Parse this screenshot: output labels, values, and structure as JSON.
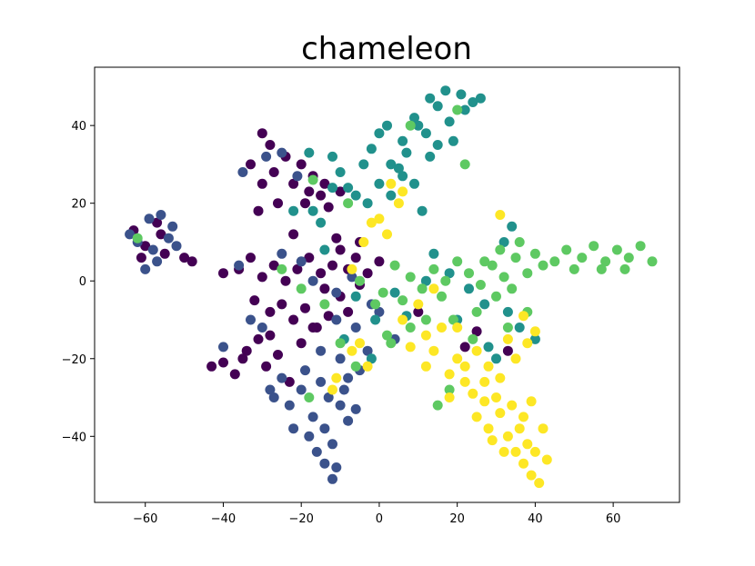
{
  "chart_data": {
    "type": "scatter",
    "title": "chameleon",
    "xlabel": "",
    "ylabel": "",
    "xlim": [
      -73,
      77
    ],
    "ylim": [
      -57,
      55
    ],
    "xticks": [
      -60,
      -40,
      -20,
      0,
      20,
      40,
      60
    ],
    "yticks": [
      -40,
      -20,
      0,
      20,
      40
    ],
    "xtick_labels": [
      "−60",
      "−40",
      "−20",
      "0",
      "20",
      "40",
      "60"
    ],
    "ytick_labels": [
      "−40",
      "−20",
      "0",
      "20",
      "40"
    ],
    "grid": false,
    "legend": "none",
    "marker": "circle",
    "colormap": "viridis",
    "series": [
      {
        "color": "#440154",
        "points": [
          [
            -63,
            13
          ],
          [
            -60,
            9
          ],
          [
            -57,
            15
          ],
          [
            -55,
            7
          ],
          [
            -61,
            6
          ],
          [
            -56,
            12
          ],
          [
            -50,
            6
          ],
          [
            -48,
            5
          ],
          [
            -30,
            38
          ],
          [
            -28,
            35
          ],
          [
            -33,
            30
          ],
          [
            -27,
            28
          ],
          [
            -24,
            32
          ],
          [
            -20,
            30
          ],
          [
            -22,
            25
          ],
          [
            -17,
            27
          ],
          [
            -30,
            25
          ],
          [
            -26,
            20
          ],
          [
            -31,
            18
          ],
          [
            -19,
            20
          ],
          [
            -15,
            22
          ],
          [
            -13,
            19
          ],
          [
            -10,
            23
          ],
          [
            -14,
            25
          ],
          [
            -18,
            23
          ],
          [
            -40,
            2
          ],
          [
            -36,
            3
          ],
          [
            -33,
            6
          ],
          [
            -30,
            1
          ],
          [
            -27,
            4
          ],
          [
            -24,
            0
          ],
          [
            -21,
            3
          ],
          [
            -18,
            6
          ],
          [
            -15,
            2
          ],
          [
            -12,
            4
          ],
          [
            -10,
            8
          ],
          [
            -8,
            3
          ],
          [
            -5,
            -1
          ],
          [
            -32,
            -5
          ],
          [
            -28,
            -8
          ],
          [
            -25,
            -6
          ],
          [
            -22,
            -10
          ],
          [
            -19,
            -7
          ],
          [
            -16,
            -12
          ],
          [
            -13,
            -9
          ],
          [
            -10,
            -4
          ],
          [
            -8,
            -8
          ],
          [
            -40,
            -21
          ],
          [
            -37,
            -24
          ],
          [
            -34,
            -18
          ],
          [
            -31,
            -15
          ],
          [
            -29,
            -22
          ],
          [
            -26,
            -19
          ],
          [
            -23,
            -26
          ],
          [
            -20,
            -16
          ],
          [
            -17,
            -12
          ],
          [
            -43,
            -22
          ],
          [
            -35,
            -20
          ],
          [
            -28,
            -14
          ],
          [
            -14,
            -2
          ],
          [
            -6,
            6
          ],
          [
            -3,
            2
          ],
          [
            -5,
            10
          ],
          [
            0,
            5
          ],
          [
            -22,
            12
          ],
          [
            -11,
            11
          ],
          [
            22,
            -17
          ],
          [
            25,
            -13
          ],
          [
            10,
            -8
          ],
          [
            33,
            -18
          ]
        ]
      },
      {
        "color": "#3b528b",
        "points": [
          [
            -62,
            10
          ],
          [
            -59,
            16
          ],
          [
            -54,
            11
          ],
          [
            -57,
            5
          ],
          [
            -53,
            14
          ],
          [
            -60,
            3
          ],
          [
            -58,
            8
          ],
          [
            -52,
            9
          ],
          [
            -64,
            12
          ],
          [
            -56,
            17
          ],
          [
            -35,
            28
          ],
          [
            -25,
            33
          ],
          [
            -21,
            27
          ],
          [
            -29,
            32
          ],
          [
            -36,
            4
          ],
          [
            -25,
            7
          ],
          [
            -20,
            5
          ],
          [
            -17,
            0
          ],
          [
            -11,
            -3
          ],
          [
            -7,
            1
          ],
          [
            -2,
            -6
          ],
          [
            -30,
            -12
          ],
          [
            -27,
            -30
          ],
          [
            -23,
            -32
          ],
          [
            -20,
            -28
          ],
          [
            -17,
            -35
          ],
          [
            -14,
            -38
          ],
          [
            -12,
            -42
          ],
          [
            -11,
            -48
          ],
          [
            -12,
            -51
          ],
          [
            -19,
            -23
          ],
          [
            -15,
            -26
          ],
          [
            -13,
            -30
          ],
          [
            -10,
            -32
          ],
          [
            -8,
            -36
          ],
          [
            -18,
            -40
          ],
          [
            -16,
            -44
          ],
          [
            -14,
            -47
          ],
          [
            -25,
            -25
          ],
          [
            -28,
            -28
          ],
          [
            -22,
            -38
          ],
          [
            -9,
            -28
          ],
          [
            -6,
            -33
          ],
          [
            -5,
            -23
          ],
          [
            -10,
            -20
          ],
          [
            -3,
            -18
          ],
          [
            -6,
            -12
          ],
          [
            4,
            -15
          ],
          [
            0,
            -8
          ],
          [
            -15,
            -18
          ],
          [
            -33,
            -10
          ],
          [
            -40,
            -17
          ],
          [
            -11,
            -10
          ],
          [
            -8,
            -25
          ]
        ]
      },
      {
        "color": "#21918c",
        "points": [
          [
            -2,
            34
          ],
          [
            0,
            38
          ],
          [
            3,
            30
          ],
          [
            6,
            36
          ],
          [
            9,
            42
          ],
          [
            12,
            38
          ],
          [
            15,
            45
          ],
          [
            18,
            41
          ],
          [
            21,
            48
          ],
          [
            24,
            46
          ],
          [
            26,
            47
          ],
          [
            22,
            44
          ],
          [
            17,
            49
          ],
          [
            13,
            47
          ],
          [
            10,
            40
          ],
          [
            7,
            33
          ],
          [
            5,
            29
          ],
          [
            2,
            40
          ],
          [
            -4,
            30
          ],
          [
            -6,
            22
          ],
          [
            -8,
            24
          ],
          [
            -10,
            28
          ],
          [
            -12,
            32
          ],
          [
            -12,
            24
          ],
          [
            -15,
            15
          ],
          [
            -17,
            18
          ],
          [
            -3,
            20
          ],
          [
            0,
            25
          ],
          [
            3,
            22
          ],
          [
            6,
            27
          ],
          [
            9,
            25
          ],
          [
            11,
            18
          ],
          [
            15,
            35
          ],
          [
            19,
            36
          ],
          [
            13,
            32
          ],
          [
            -18,
            33
          ],
          [
            -22,
            18
          ],
          [
            -14,
            8
          ],
          [
            -6,
            -4
          ],
          [
            -1,
            -10
          ],
          [
            4,
            -3
          ],
          [
            7,
            -9
          ],
          [
            12,
            0
          ],
          [
            14,
            7
          ],
          [
            18,
            2
          ],
          [
            23,
            -2
          ],
          [
            27,
            -6
          ],
          [
            20,
            -10
          ],
          [
            32,
            10
          ],
          [
            34,
            14
          ],
          [
            33,
            -8
          ],
          [
            36,
            -12
          ],
          [
            40,
            -15
          ],
          [
            30,
            -20
          ],
          [
            28,
            -17
          ],
          [
            -2,
            -20
          ],
          [
            -9,
            -15
          ]
        ]
      },
      {
        "color": "#5ec962",
        "points": [
          [
            -62,
            11
          ],
          [
            45,
            5
          ],
          [
            48,
            8
          ],
          [
            52,
            6
          ],
          [
            55,
            9
          ],
          [
            58,
            5
          ],
          [
            61,
            8
          ],
          [
            64,
            6
          ],
          [
            67,
            9
          ],
          [
            70,
            5
          ],
          [
            63,
            3
          ],
          [
            57,
            3
          ],
          [
            50,
            3
          ],
          [
            42,
            4
          ],
          [
            40,
            7
          ],
          [
            38,
            2
          ],
          [
            35,
            6
          ],
          [
            32,
            1
          ],
          [
            29,
            4
          ],
          [
            26,
            -1
          ],
          [
            23,
            2
          ],
          [
            20,
            5
          ],
          [
            17,
            0
          ],
          [
            14,
            3
          ],
          [
            11,
            -2
          ],
          [
            8,
            1
          ],
          [
            6,
            -5
          ],
          [
            4,
            4
          ],
          [
            1,
            -3
          ],
          [
            30,
            -4
          ],
          [
            34,
            -2
          ],
          [
            38,
            -8
          ],
          [
            27,
            5
          ],
          [
            31,
            8
          ],
          [
            36,
            10
          ],
          [
            22,
            30
          ],
          [
            25,
            -8
          ],
          [
            19,
            -10
          ],
          [
            16,
            -4
          ],
          [
            12,
            -10
          ],
          [
            8,
            -12
          ],
          [
            2,
            -14
          ],
          [
            -5,
            0
          ],
          [
            -8,
            20
          ],
          [
            -14,
            -6
          ],
          [
            -20,
            -2
          ],
          [
            -25,
            3
          ],
          [
            -17,
            26
          ],
          [
            -10,
            -16
          ],
          [
            -6,
            -22
          ],
          [
            -18,
            -30
          ],
          [
            20,
            44
          ],
          [
            8,
            40
          ],
          [
            18,
            -28
          ],
          [
            15,
            -32
          ],
          [
            33,
            -12
          ],
          [
            24,
            -15
          ],
          [
            3,
            -16
          ],
          [
            -1,
            -6
          ]
        ]
      },
      {
        "color": "#fde725",
        "points": [
          [
            20,
            -20
          ],
          [
            18,
            -24
          ],
          [
            22,
            -26
          ],
          [
            24,
            -29
          ],
          [
            27,
            -31
          ],
          [
            25,
            -35
          ],
          [
            28,
            -38
          ],
          [
            31,
            -34
          ],
          [
            33,
            -40
          ],
          [
            35,
            -44
          ],
          [
            37,
            -47
          ],
          [
            39,
            -50
          ],
          [
            41,
            -52
          ],
          [
            43,
            -46
          ],
          [
            38,
            -42
          ],
          [
            36,
            -38
          ],
          [
            34,
            -32
          ],
          [
            30,
            -30
          ],
          [
            32,
            -44
          ],
          [
            29,
            -41
          ],
          [
            40,
            -44
          ],
          [
            42,
            -38
          ],
          [
            37,
            -35
          ],
          [
            14,
            -18
          ],
          [
            12,
            -14
          ],
          [
            16,
            -12
          ],
          [
            10,
            -6
          ],
          [
            14,
            -2
          ],
          [
            20,
            -12
          ],
          [
            25,
            -18
          ],
          [
            28,
            -22
          ],
          [
            31,
            -25
          ],
          [
            35,
            -20
          ],
          [
            38,
            -16
          ],
          [
            40,
            -13
          ],
          [
            33,
            -15
          ],
          [
            5,
            20
          ],
          [
            3,
            25
          ],
          [
            2,
            12
          ],
          [
            0,
            16
          ],
          [
            -7,
            -18
          ],
          [
            -5,
            -16
          ],
          [
            -3,
            -22
          ],
          [
            -11,
            -25
          ],
          [
            -12,
            -28
          ],
          [
            8,
            -17
          ],
          [
            6,
            -10
          ],
          [
            12,
            -22
          ],
          [
            18,
            -30
          ],
          [
            22,
            -22
          ],
          [
            -4,
            10
          ],
          [
            -7,
            3
          ],
          [
            31,
            17
          ],
          [
            37,
            -9
          ],
          [
            6,
            23
          ],
          [
            -2,
            15
          ],
          [
            27,
            -26
          ],
          [
            39,
            -31
          ]
        ]
      }
    ]
  }
}
